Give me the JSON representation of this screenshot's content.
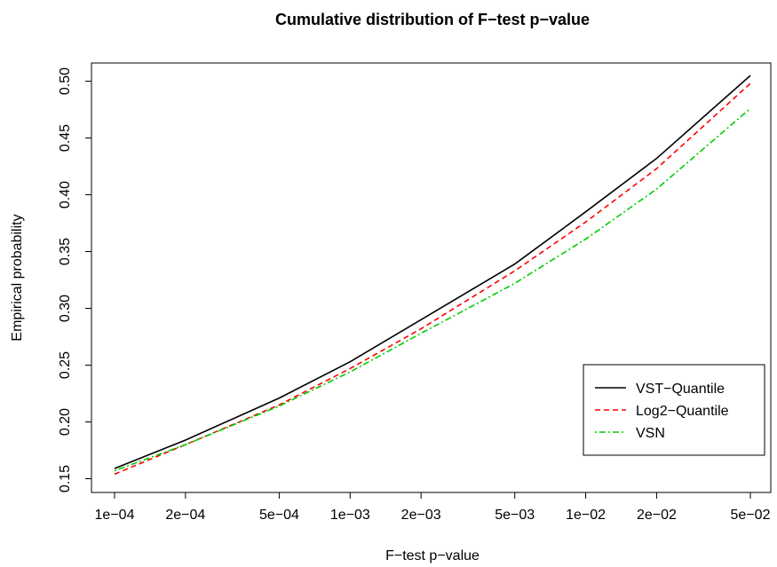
{
  "chart_data": {
    "type": "line",
    "title": "Cumulative distribution of F−test p−value",
    "xlabel": "F−test p−value",
    "ylabel": "Empirical probability",
    "x_scale": "log",
    "xlim": [
      0.0001,
      0.05
    ],
    "ylim": [
      0.15,
      0.51
    ],
    "x_ticks": [
      0.0001,
      0.0002,
      0.0005,
      0.001,
      0.002,
      0.005,
      0.01,
      0.02,
      0.05
    ],
    "x_tick_labels": [
      "1e−04",
      "2e−04",
      "5e−04",
      "1e−03",
      "2e−03",
      "5e−03",
      "1e−02",
      "2e−02",
      "5e−02"
    ],
    "y_ticks": [
      0.15,
      0.2,
      0.25,
      0.3,
      0.35,
      0.4,
      0.45,
      0.5
    ],
    "y_tick_labels": [
      "0.15",
      "0.20",
      "0.25",
      "0.30",
      "0.35",
      "0.40",
      "0.45",
      "0.50"
    ],
    "grid": false,
    "legend_position": "bottom-right",
    "x": [
      0.0001,
      0.0002,
      0.0005,
      0.001,
      0.002,
      0.005,
      0.01,
      0.02,
      0.05
    ],
    "series": [
      {
        "name": "VST−Quantile",
        "color": "#000000",
        "dash": "solid",
        "values": [
          0.159,
          0.184,
          0.221,
          0.253,
          0.29,
          0.339,
          0.385,
          0.432,
          0.505
        ]
      },
      {
        "name": "Log2−Quantile",
        "color": "#ff0000",
        "dash": "dashed",
        "values": [
          0.154,
          0.18,
          0.215,
          0.247,
          0.282,
          0.333,
          0.376,
          0.423,
          0.498
        ]
      },
      {
        "name": "VSN",
        "color": "#00cd00",
        "dash": "dotdash",
        "values": [
          0.157,
          0.18,
          0.214,
          0.244,
          0.278,
          0.322,
          0.361,
          0.405,
          0.476
        ]
      }
    ]
  }
}
